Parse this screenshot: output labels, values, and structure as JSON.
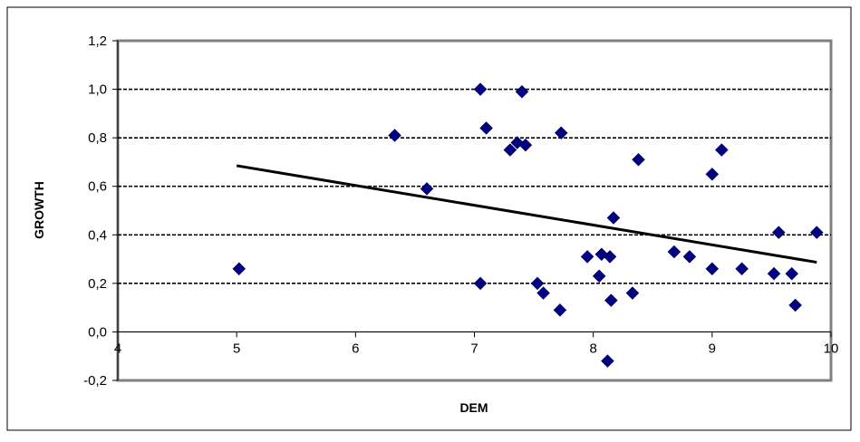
{
  "chart_data": {
    "type": "scatter",
    "title": "",
    "xlabel": "DEM",
    "ylabel": "GROWTH",
    "xlim": [
      4,
      10
    ],
    "ylim": [
      -0.2,
      1.2
    ],
    "x_ticks": [
      4,
      5,
      6,
      7,
      8,
      9,
      10
    ],
    "x_tick_labels": [
      "4",
      "5",
      "6",
      "7",
      "8",
      "9",
      "10"
    ],
    "y_ticks": [
      -0.2,
      0.0,
      0.2,
      0.4,
      0.6,
      0.8,
      1.0,
      1.2
    ],
    "y_tick_labels": [
      "-0,2",
      "0,0",
      "0,2",
      "0,4",
      "0,6",
      "0,8",
      "1,0",
      "1,2"
    ],
    "grid": "horizontal",
    "legend": "none",
    "series": [
      {
        "marker": "diamond",
        "color": "#000080",
        "points": [
          {
            "x": 5.02,
            "y": 0.26
          },
          {
            "x": 6.33,
            "y": 0.81
          },
          {
            "x": 6.6,
            "y": 0.59
          },
          {
            "x": 7.05,
            "y": 1.0
          },
          {
            "x": 7.1,
            "y": 0.84
          },
          {
            "x": 7.05,
            "y": 0.2
          },
          {
            "x": 7.3,
            "y": 0.75
          },
          {
            "x": 7.36,
            "y": 0.78
          },
          {
            "x": 7.4,
            "y": 0.99
          },
          {
            "x": 7.43,
            "y": 0.77
          },
          {
            "x": 7.53,
            "y": 0.2
          },
          {
            "x": 7.58,
            "y": 0.16
          },
          {
            "x": 7.72,
            "y": 0.09
          },
          {
            "x": 7.73,
            "y": 0.82
          },
          {
            "x": 7.95,
            "y": 0.31
          },
          {
            "x": 8.05,
            "y": 0.23
          },
          {
            "x": 8.07,
            "y": 0.32
          },
          {
            "x": 8.12,
            "y": -0.12
          },
          {
            "x": 8.14,
            "y": 0.31
          },
          {
            "x": 8.15,
            "y": 0.13
          },
          {
            "x": 8.17,
            "y": 0.47
          },
          {
            "x": 8.33,
            "y": 0.16
          },
          {
            "x": 8.38,
            "y": 0.71
          },
          {
            "x": 8.68,
            "y": 0.33
          },
          {
            "x": 8.81,
            "y": 0.31
          },
          {
            "x": 9.0,
            "y": 0.26
          },
          {
            "x": 9.0,
            "y": 0.65
          },
          {
            "x": 9.08,
            "y": 0.75
          },
          {
            "x": 9.25,
            "y": 0.26
          },
          {
            "x": 9.52,
            "y": 0.24
          },
          {
            "x": 9.56,
            "y": 0.41
          },
          {
            "x": 9.67,
            "y": 0.24
          },
          {
            "x": 9.7,
            "y": 0.11
          },
          {
            "x": 9.88,
            "y": 0.41
          }
        ]
      }
    ],
    "trendline": {
      "type": "linear",
      "color": "#000000",
      "x_start": 5.0,
      "y_start": 0.685,
      "x_end": 9.88,
      "y_end": 0.287
    }
  }
}
